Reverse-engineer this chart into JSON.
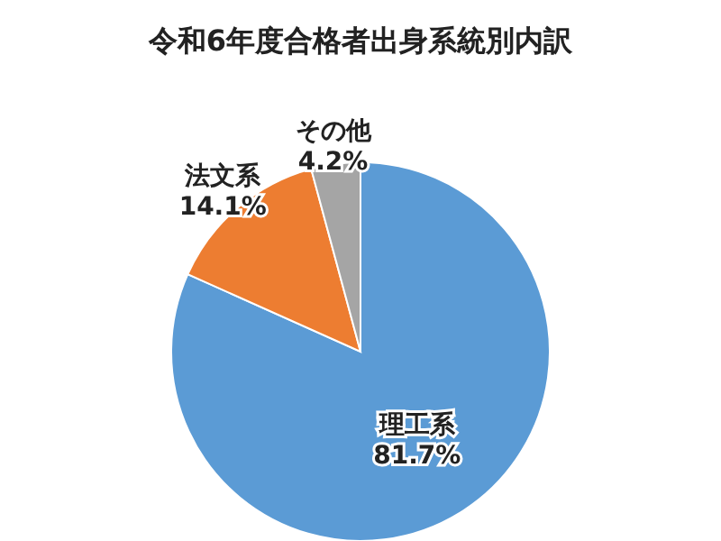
{
  "chart_data": {
    "type": "pie",
    "title": "令和6年度合格者出身系統別内訳",
    "categories": [
      "理工系",
      "法文系",
      "その他"
    ],
    "values": [
      81.7,
      14.1,
      4.2
    ],
    "colors": [
      "#5b9bd5",
      "#ed7d31",
      "#a5a5a5"
    ],
    "value_labels": [
      "81.7%",
      "14.1%",
      "4.2%"
    ]
  }
}
